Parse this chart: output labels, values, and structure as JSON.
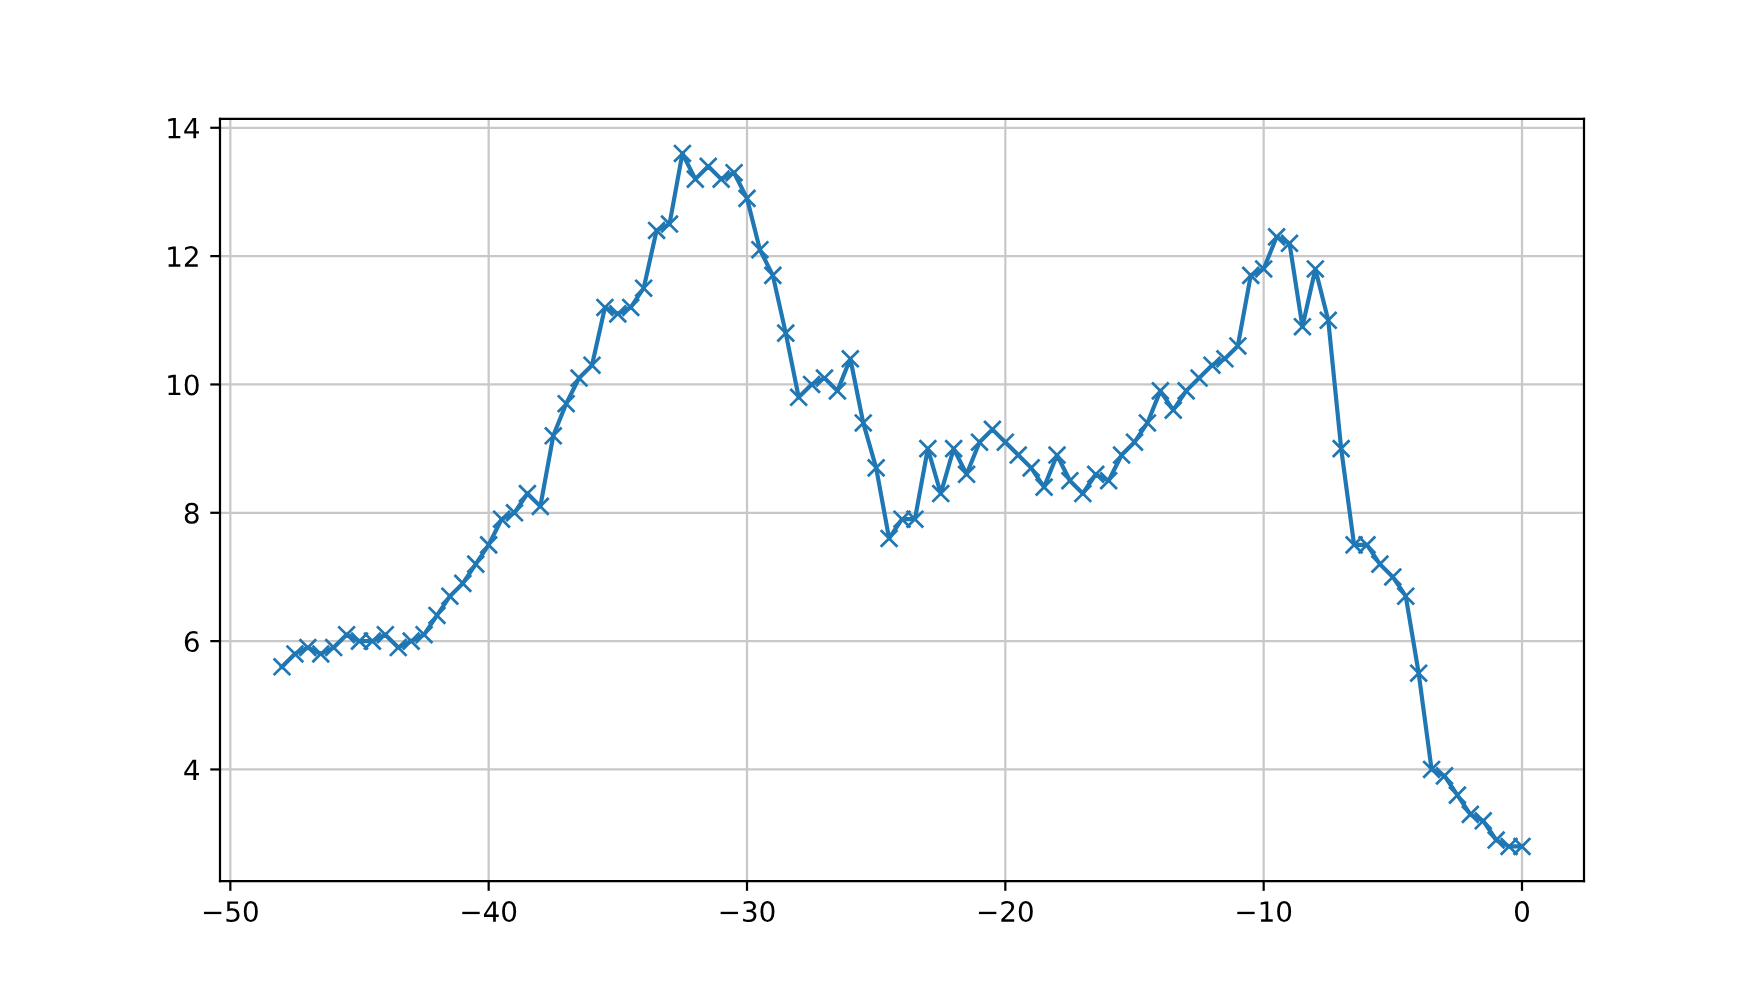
{
  "chart_data": {
    "type": "line",
    "marker": "cross",
    "grid": true,
    "x": [
      -48,
      -47.5,
      -47,
      -46.5,
      -46,
      -45.5,
      -45,
      -44.5,
      -44,
      -43.5,
      -43,
      -42.5,
      -42,
      -41.5,
      -41,
      -40.5,
      -40,
      -39.5,
      -39,
      -38.5,
      -38,
      -37.5,
      -37,
      -36.5,
      -36,
      -35.5,
      -35,
      -34.5,
      -34,
      -33.5,
      -33,
      -32.5,
      -32,
      -31.5,
      -31,
      -30.5,
      -30,
      -29.5,
      -29,
      -28.5,
      -28,
      -27.5,
      -27,
      -26.5,
      -26,
      -25.5,
      -25,
      -24.5,
      -24,
      -23.5,
      -23,
      -22.5,
      -22,
      -21.5,
      -21,
      -20.5,
      -20,
      -19.5,
      -19,
      -18.5,
      -18,
      -17.5,
      -17,
      -16.5,
      -16,
      -15.5,
      -15,
      -14.5,
      -14,
      -13.5,
      -13,
      -12.5,
      -12,
      -11.5,
      -11,
      -10.5,
      -10,
      -9.5,
      -9,
      -8.5,
      -8,
      -7.5,
      -7,
      -6.5,
      -6,
      -5.5,
      -5,
      -4.5,
      -4,
      -3.5,
      -3,
      -2.5,
      -2,
      -1.5,
      -1,
      -0.5,
      0
    ],
    "series": [
      {
        "color": "#1f77b4",
        "values": [
          5.6,
          5.8,
          5.9,
          5.8,
          5.9,
          6.1,
          6.0,
          6.0,
          6.1,
          5.9,
          6.0,
          6.1,
          6.4,
          6.7,
          6.9,
          7.2,
          7.5,
          7.9,
          8.0,
          8.3,
          8.1,
          9.2,
          9.7,
          10.1,
          10.3,
          11.2,
          11.1,
          11.2,
          11.5,
          12.4,
          12.5,
          13.6,
          13.2,
          13.4,
          13.2,
          13.3,
          12.9,
          12.1,
          11.7,
          10.8,
          9.8,
          10.0,
          10.1,
          9.9,
          10.4,
          9.4,
          8.7,
          7.6,
          7.9,
          7.9,
          9.0,
          8.3,
          9.0,
          8.6,
          9.1,
          9.3,
          9.1,
          8.9,
          8.7,
          8.4,
          8.9,
          8.5,
          8.3,
          8.6,
          8.5,
          8.9,
          9.1,
          9.4,
          9.9,
          9.6,
          9.9,
          10.1,
          10.3,
          10.4,
          10.6,
          11.7,
          11.8,
          12.3,
          12.2,
          10.9,
          11.8,
          11.0,
          9.0,
          7.5,
          7.5,
          7.2,
          7.0,
          6.7,
          5.5,
          4.0,
          3.9,
          3.6,
          3.3,
          3.2,
          2.9,
          2.8,
          2.8
        ]
      }
    ],
    "xlim": [
      -50.4,
      2.4
    ],
    "ylim": [
      2.26,
      14.14
    ],
    "xticks": [
      {
        "value": -50,
        "label": "−50"
      },
      {
        "value": -40,
        "label": "−40"
      },
      {
        "value": -30,
        "label": "−30"
      },
      {
        "value": -20,
        "label": "−20"
      },
      {
        "value": -10,
        "label": "−10"
      },
      0
    ],
    "yticks": [
      4,
      6,
      8,
      10,
      12,
      14
    ]
  }
}
